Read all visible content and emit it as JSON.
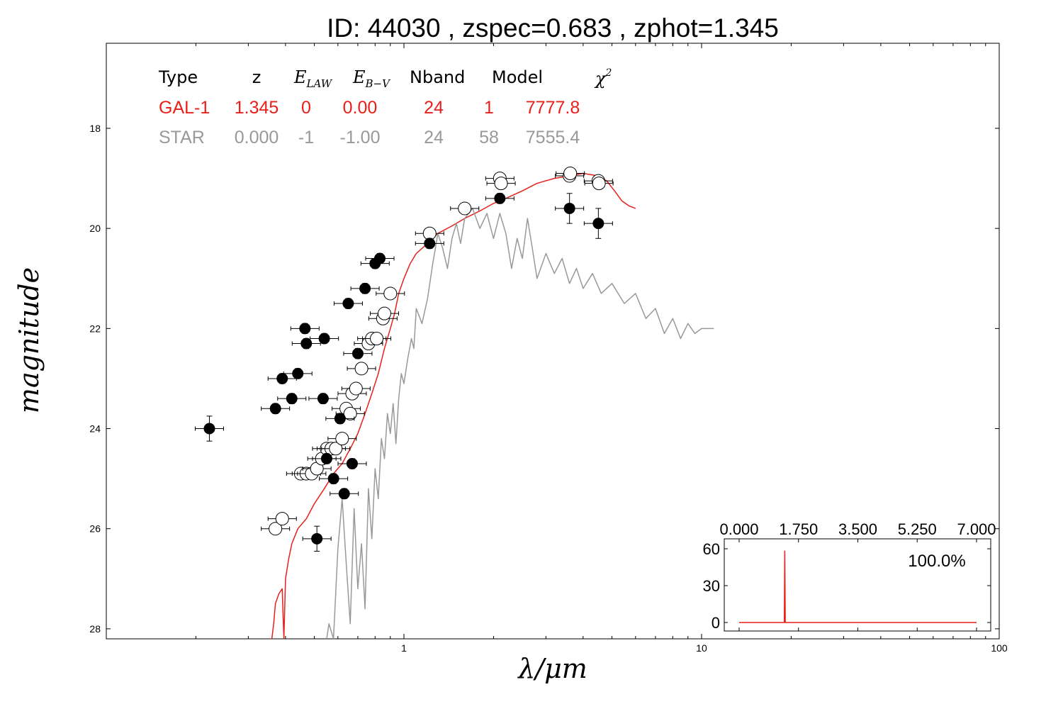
{
  "chart_data": [
    {
      "type": "scatter",
      "title": "ID:  44030 , zspec=0.683 , zphot=1.345",
      "xlabel": "λ/μm",
      "ylabel": "magnitude",
      "xscale": "log",
      "xlim": [
        0.1,
        100
      ],
      "ylim": [
        28.2,
        16.3
      ],
      "y_inverted": true,
      "xticks": [
        1,
        10,
        100
      ],
      "xtick_labels": [
        "1",
        "10",
        "100"
      ],
      "yticks": [
        18,
        20,
        22,
        24,
        26,
        28
      ],
      "ytick_labels": [
        "18",
        "20",
        "22",
        "24",
        "26",
        "28"
      ],
      "colors": {
        "gal": "#e8201c",
        "star": "#999999",
        "obs": "#000000",
        "model_points": "#ffffff"
      },
      "fit_table": {
        "headers": [
          "Type",
          "z",
          "E_LAW",
          "E_B−V",
          "Nband",
          "Model",
          "χ²"
        ],
        "rows": [
          {
            "color": "#e8201c",
            "cells": [
              "GAL-1",
              "1.345",
              "0",
              "0.00",
              "24",
              "1",
              "7777.8"
            ]
          },
          {
            "color": "#999999",
            "cells": [
              "STAR",
              "0.000",
              "-1",
              "-1.00",
              "24",
              "58",
              "7555.4"
            ]
          }
        ]
      },
      "series": [
        {
          "name": "GAL-1",
          "style": "line",
          "color": "#e8201c",
          "points": [
            [
              0.36,
              28.2
            ],
            [
              0.365,
              27.9
            ],
            [
              0.37,
              27.5
            ],
            [
              0.38,
              27.3
            ],
            [
              0.39,
              27.2
            ],
            [
              0.395,
              28.2
            ],
            [
              0.4,
              27.0
            ],
            [
              0.41,
              26.6
            ],
            [
              0.42,
              26.3
            ],
            [
              0.44,
              26.0
            ],
            [
              0.47,
              25.8
            ],
            [
              0.5,
              25.5
            ],
            [
              0.54,
              25.2
            ],
            [
              0.58,
              24.9
            ],
            [
              0.62,
              24.7
            ],
            [
              0.66,
              24.4
            ],
            [
              0.7,
              24.1
            ],
            [
              0.74,
              23.7
            ],
            [
              0.78,
              23.3
            ],
            [
              0.82,
              22.9
            ],
            [
              0.86,
              22.4
            ],
            [
              0.9,
              22.0
            ],
            [
              0.93,
              21.7
            ],
            [
              0.96,
              21.3
            ],
            [
              1.0,
              21.0
            ],
            [
              1.05,
              20.7
            ],
            [
              1.1,
              20.5
            ],
            [
              1.2,
              20.3
            ],
            [
              1.3,
              20.1
            ],
            [
              1.45,
              19.95
            ],
            [
              1.6,
              19.8
            ],
            [
              1.8,
              19.65
            ],
            [
              2.0,
              19.5
            ],
            [
              2.2,
              19.4
            ],
            [
              2.5,
              19.25
            ],
            [
              2.8,
              19.1
            ],
            [
              3.2,
              19.0
            ],
            [
              3.6,
              18.95
            ],
            [
              4.0,
              18.9
            ],
            [
              4.5,
              18.95
            ],
            [
              4.8,
              19.05
            ],
            [
              5.1,
              19.25
            ],
            [
              5.4,
              19.45
            ],
            [
              5.7,
              19.55
            ],
            [
              6.0,
              19.6
            ]
          ]
        },
        {
          "name": "STAR",
          "style": "line",
          "color": "#999999",
          "points": [
            [
              0.55,
              28.2
            ],
            [
              0.56,
              27.9
            ],
            [
              0.58,
              28.2
            ],
            [
              0.6,
              26.4
            ],
            [
              0.62,
              25.4
            ],
            [
              0.64,
              26.7
            ],
            [
              0.66,
              27.9
            ],
            [
              0.68,
              25.6
            ],
            [
              0.7,
              27.2
            ],
            [
              0.72,
              26.3
            ],
            [
              0.74,
              27.6
            ],
            [
              0.76,
              25.2
            ],
            [
              0.78,
              26.2
            ],
            [
              0.8,
              24.8
            ],
            [
              0.82,
              25.4
            ],
            [
              0.84,
              24.2
            ],
            [
              0.86,
              24.6
            ],
            [
              0.88,
              23.7
            ],
            [
              0.9,
              24.1
            ],
            [
              0.92,
              23.5
            ],
            [
              0.94,
              24.3
            ],
            [
              0.96,
              23.4
            ],
            [
              0.98,
              22.9
            ],
            [
              1.0,
              23.1
            ],
            [
              1.03,
              22.6
            ],
            [
              1.06,
              22.2
            ],
            [
              1.08,
              22.4
            ],
            [
              1.1,
              21.6
            ],
            [
              1.15,
              21.9
            ],
            [
              1.2,
              21.4
            ],
            [
              1.25,
              20.7
            ],
            [
              1.3,
              20.1
            ],
            [
              1.35,
              20.4
            ],
            [
              1.4,
              20.8
            ],
            [
              1.45,
              20.2
            ],
            [
              1.5,
              19.9
            ],
            [
              1.55,
              20.3
            ],
            [
              1.6,
              19.8
            ],
            [
              1.7,
              19.6
            ],
            [
              1.8,
              20.0
            ],
            [
              1.9,
              19.7
            ],
            [
              2.0,
              20.2
            ],
            [
              2.1,
              19.7
            ],
            [
              2.2,
              20.1
            ],
            [
              2.3,
              20.8
            ],
            [
              2.4,
              20.2
            ],
            [
              2.5,
              20.6
            ],
            [
              2.6,
              19.8
            ],
            [
              2.7,
              20.4
            ],
            [
              2.8,
              21.0
            ],
            [
              3.0,
              20.5
            ],
            [
              3.2,
              20.9
            ],
            [
              3.4,
              20.6
            ],
            [
              3.6,
              21.1
            ],
            [
              3.8,
              20.8
            ],
            [
              4.0,
              21.2
            ],
            [
              4.3,
              20.9
            ],
            [
              4.6,
              21.3
            ],
            [
              5.0,
              21.1
            ],
            [
              5.5,
              21.5
            ],
            [
              6.0,
              21.3
            ],
            [
              6.5,
              21.8
            ],
            [
              7.0,
              21.6
            ],
            [
              7.5,
              22.1
            ],
            [
              8.0,
              21.8
            ],
            [
              8.5,
              22.2
            ],
            [
              9.0,
              21.9
            ],
            [
              9.5,
              22.1
            ],
            [
              10,
              22.0
            ],
            [
              11,
              22.0
            ]
          ]
        },
        {
          "name": "observed",
          "style": "filled-circle",
          "color": "#000000",
          "points": [
            [
              0.222,
              24.0
            ],
            [
              0.37,
              23.6
            ],
            [
              0.39,
              23.0
            ],
            [
              0.42,
              23.4
            ],
            [
              0.44,
              22.9
            ],
            [
              0.47,
              22.3
            ],
            [
              0.465,
              22.0
            ],
            [
              0.54,
              22.2
            ],
            [
              0.535,
              23.4
            ],
            [
              0.58,
              25.0
            ],
            [
              0.55,
              24.6
            ],
            [
              0.61,
              23.8
            ],
            [
              0.63,
              25.3
            ],
            [
              0.67,
              24.7
            ],
            [
              0.65,
              21.5
            ],
            [
              0.7,
              22.5
            ],
            [
              0.74,
              21.2
            ],
            [
              0.8,
              20.7
            ],
            [
              0.83,
              20.6
            ],
            [
              0.51,
              26.2
            ],
            [
              1.22,
              20.3
            ],
            [
              2.1,
              19.4
            ],
            [
              3.6,
              19.6
            ],
            [
              4.5,
              19.9
            ]
          ],
          "yerr": [
            0.25,
            0.1,
            0.1,
            0.1,
            0.1,
            0.1,
            0.1,
            0.1,
            0.1,
            0.1,
            0.1,
            0.1,
            0.1,
            0.1,
            0.1,
            0.1,
            0.1,
            0.1,
            0.1,
            0.25,
            0.1,
            0.1,
            0.3,
            0.3
          ]
        },
        {
          "name": "model",
          "style": "open-circle",
          "color": "#ffffff",
          "points": [
            [
              0.37,
              26.0
            ],
            [
              0.39,
              25.8
            ],
            [
              0.45,
              24.9
            ],
            [
              0.47,
              24.9
            ],
            [
              0.49,
              24.9
            ],
            [
              0.51,
              24.8
            ],
            [
              0.53,
              24.6
            ],
            [
              0.55,
              24.4
            ],
            [
              0.57,
              24.4
            ],
            [
              0.59,
              24.4
            ],
            [
              0.62,
              24.2
            ],
            [
              0.64,
              23.6
            ],
            [
              0.66,
              23.7
            ],
            [
              0.67,
              23.3
            ],
            [
              0.69,
              23.2
            ],
            [
              0.72,
              22.8
            ],
            [
              0.76,
              22.3
            ],
            [
              0.78,
              22.2
            ],
            [
              0.81,
              22.2
            ],
            [
              0.85,
              21.8
            ],
            [
              0.86,
              21.7
            ],
            [
              0.9,
              21.3
            ],
            [
              1.22,
              20.1
            ],
            [
              1.6,
              19.6
            ],
            [
              2.1,
              19.0
            ],
            [
              2.12,
              19.1
            ],
            [
              3.6,
              18.95
            ],
            [
              3.62,
              18.9
            ],
            [
              4.5,
              19.05
            ],
            [
              4.52,
              19.1
            ]
          ]
        }
      ]
    },
    {
      "type": "line",
      "title": "",
      "xlim": [
        0,
        7
      ],
      "ylim": [
        -5,
        65
      ],
      "xticks": [
        0,
        1.75,
        3.5,
        5.25,
        7
      ],
      "xtick_labels": [
        "0.000",
        "1.750",
        "3.500",
        "5.250",
        "7.000"
      ],
      "yticks": [
        0,
        30,
        60
      ],
      "ytick_labels": [
        "0",
        "30",
        "60"
      ],
      "annotation": "100.0%",
      "color": "#e8201c",
      "series": [
        {
          "x": [
            0,
            1.3,
            1.33,
            1.345,
            1.36,
            1.39,
            7
          ],
          "y": [
            0,
            0,
            0,
            58.5,
            0,
            0,
            0
          ]
        }
      ]
    }
  ]
}
